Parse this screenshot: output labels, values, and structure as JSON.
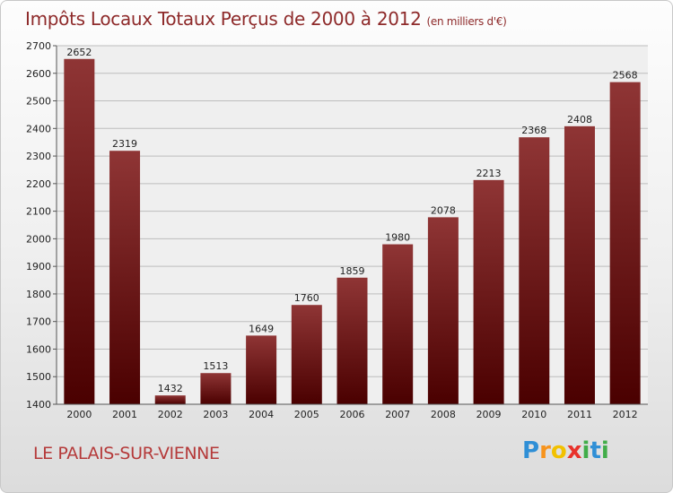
{
  "title": "Impôts Locaux Totaux Perçus de 2000 à 2012",
  "unit_note": "(en milliers d'€)",
  "city": "LE PALAIS-SUR-VIENNE",
  "logo": {
    "text": "Proxiti",
    "letters": [
      "P",
      "r",
      "o",
      "x",
      "i",
      "t",
      "i"
    ],
    "colors": [
      "#2f8fd6",
      "#f7941d",
      "#f2c100",
      "#e8322b",
      "#41ad49",
      "#2f8fd6",
      "#41ad49"
    ]
  },
  "colors": {
    "bar_top": "#8f3535",
    "bar_bottom": "#4a0000",
    "title": "#8e2a2a"
  },
  "chart_data": {
    "type": "bar",
    "title": "Impôts Locaux Totaux Perçus de 2000 à 2012",
    "xlabel": "",
    "ylabel": "en milliers d'€",
    "categories": [
      "2000",
      "2001",
      "2002",
      "2003",
      "2004",
      "2005",
      "2006",
      "2007",
      "2008",
      "2009",
      "2010",
      "2011",
      "2012"
    ],
    "values": [
      2652,
      2319,
      1432,
      1513,
      1649,
      1760,
      1859,
      1980,
      2078,
      2213,
      2368,
      2408,
      2568
    ],
    "ylim": [
      1400,
      2700
    ],
    "yticks": [
      1400,
      1500,
      1600,
      1700,
      1800,
      1900,
      2000,
      2100,
      2200,
      2300,
      2400,
      2500,
      2600,
      2700
    ],
    "grid": true
  }
}
